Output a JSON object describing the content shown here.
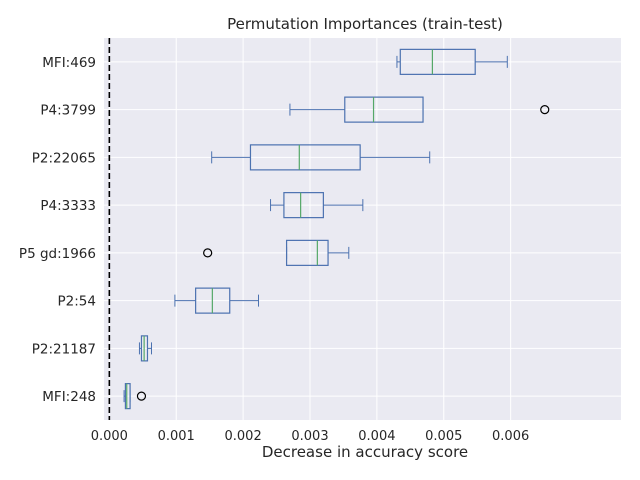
{
  "chart_data": {
    "type": "boxplot",
    "orientation": "horizontal",
    "title": "Permutation Importances (train-test)",
    "xlabel": "Decrease in accuracy score",
    "ylabel": "",
    "xlim": [
      -8e-05,
      0.00765
    ],
    "xticks": [
      0.0,
      0.001,
      0.002,
      0.003,
      0.004,
      0.005,
      0.006
    ],
    "xtick_labels": [
      "0.000",
      "0.001",
      "0.002",
      "0.003",
      "0.004",
      "0.005",
      "0.006"
    ],
    "reference_line": {
      "x": 0.0,
      "style": "dashed",
      "color": "#000000"
    },
    "grid": true,
    "background": "#eaeaf2",
    "box_color": "#4c72b0",
    "median_color": "#55a868",
    "categories": [
      "MFI:469",
      "P4:3799",
      "P2:22065",
      "P4:3333",
      "P5 gd:1966",
      "P2:54",
      "P2:21187",
      "MFI:248"
    ],
    "boxes": [
      {
        "label": "MFI:469",
        "whislo": 0.0043,
        "q1": 0.00435,
        "med": 0.00483,
        "q3": 0.00547,
        "whishi": 0.00595,
        "fliers": []
      },
      {
        "label": "P4:3799",
        "whislo": 0.0027,
        "q1": 0.00352,
        "med": 0.00395,
        "q3": 0.00469,
        "whishi": 0.00469,
        "fliers": [
          0.00651
        ]
      },
      {
        "label": "P2:22065",
        "whislo": 0.00153,
        "q1": 0.00211,
        "med": 0.00284,
        "q3": 0.00375,
        "whishi": 0.00479,
        "fliers": []
      },
      {
        "label": "P4:3333",
        "whislo": 0.00241,
        "q1": 0.00261,
        "med": 0.00286,
        "q3": 0.0032,
        "whishi": 0.00379,
        "fliers": []
      },
      {
        "label": "P5 gd:1966",
        "whislo": 0.00265,
        "q1": 0.00265,
        "med": 0.00311,
        "q3": 0.00327,
        "whishi": 0.00358,
        "fliers": [
          0.00147
        ]
      },
      {
        "label": "P2:54",
        "whislo": 0.00098,
        "q1": 0.00129,
        "med": 0.00154,
        "q3": 0.0018,
        "whishi": 0.00223,
        "fliers": []
      },
      {
        "label": "P2:21187",
        "whislo": 0.00045,
        "q1": 0.00048,
        "med": 0.00052,
        "q3": 0.00057,
        "whishi": 0.00063,
        "fliers": []
      },
      {
        "label": "MFI:248",
        "whislo": 0.00022,
        "q1": 0.00024,
        "med": 0.00026,
        "q3": 0.00031,
        "whishi": 0.00031,
        "fliers": [
          0.00048
        ]
      }
    ]
  }
}
